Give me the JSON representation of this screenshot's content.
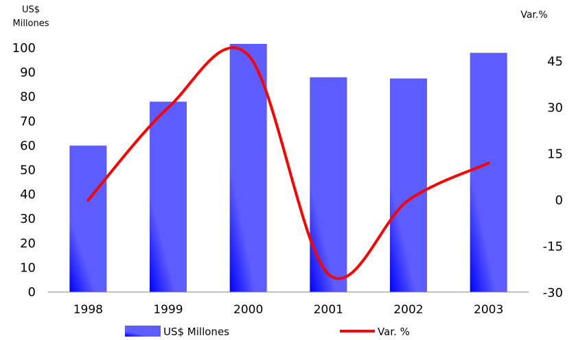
{
  "chart_data": {
    "type": "bar",
    "categories": [
      "1998",
      "1999",
      "2000",
      "2001",
      "2002",
      "2003"
    ],
    "series": [
      {
        "name": "US$ Millones",
        "type": "bar",
        "axis": "left",
        "values": [
          60,
          78,
          102,
          88,
          87.5,
          98
        ]
      },
      {
        "name": "Var. %",
        "type": "line",
        "axis": "right",
        "values": [
          0,
          30,
          47,
          -24,
          0,
          12
        ]
      }
    ],
    "ylabel": "US$ Millones",
    "ylabel_right": "Var.%",
    "ylim": [
      0,
      100
    ],
    "ylim_right": [
      -30,
      50
    ],
    "yticks": [
      0,
      10,
      20,
      30,
      40,
      50,
      60,
      70,
      80,
      90,
      100
    ],
    "yticks_right": [
      -30,
      -15,
      0,
      15,
      30,
      45
    ],
    "legend_position": "bottom",
    "bar_color": "#5c5cff",
    "bar_color_dark": "#0000ff",
    "line_color": "#ff0000",
    "grid": false
  }
}
